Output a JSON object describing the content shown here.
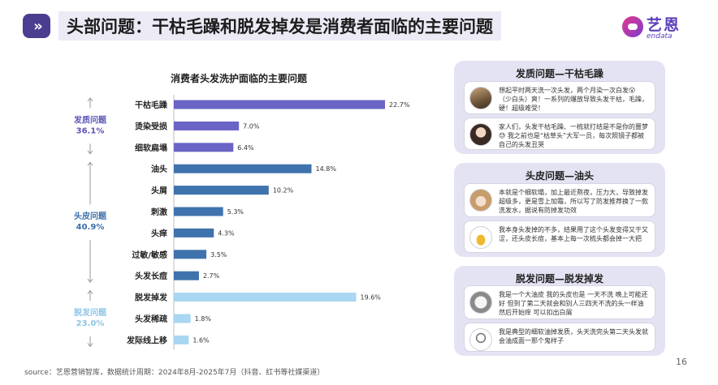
{
  "header": {
    "title": "头部问题：干枯毛躁和脱发掉发是消费者面临的主要问题",
    "logo_cn": "艺恩",
    "logo_en": "endata"
  },
  "chart_data": {
    "type": "bar",
    "orientation": "horizontal",
    "title": "消费者头发洗护面临的主要问题",
    "categories": [
      "干枯毛躁",
      "烫染受损",
      "细软扁塌",
      "油头",
      "头屑",
      "刺激",
      "头痒",
      "过敏/敏感",
      "头发长痘",
      "脱发掉发",
      "头发稀疏",
      "发际线上移"
    ],
    "values": [
      22.7,
      7.0,
      6.4,
      14.8,
      10.2,
      5.3,
      4.3,
      3.5,
      2.7,
      19.6,
      1.8,
      1.6
    ],
    "value_labels": [
      "22.7%",
      "7.0%",
      "6.4%",
      "14.8%",
      "10.2%",
      "5.3%",
      "4.3%",
      "3.5%",
      "2.7%",
      "19.6%",
      "1.8%",
      "1.6%"
    ],
    "groups": [
      {
        "name": "发质问题",
        "share": "36.1%",
        "color": "#5b55b8",
        "bar_color": "#6a64c6",
        "start": 0,
        "end": 2
      },
      {
        "name": "头皮问题",
        "share": "40.9%",
        "color": "#3b6fa8",
        "bar_color": "#3f73ad",
        "start": 3,
        "end": 8
      },
      {
        "name": "脱发问题",
        "share": "23.0%",
        "color": "#8ec5e6",
        "bar_color": "#a9d6f0",
        "start": 9,
        "end": 11
      }
    ],
    "xlim": [
      0,
      25
    ],
    "grid": false,
    "legend": "none"
  },
  "panels": [
    {
      "title": "发质问题—干枯毛躁",
      "posts": [
        {
          "text": "想起平时两天洗一次头发，两个月染一次白发😮（少白头）爽！一系列的爆放导致头发干枯，毛躁，硬！超级难受！",
          "avatar": "photo-avatar"
        },
        {
          "text": "家人们，头发干枯毛躁、一梳就打结是不是你的噩梦😓 我之前也是“枯草头”大军一员，每次照镜子都被自己的头发丑哭",
          "avatar": "photo-avatar"
        }
      ]
    },
    {
      "title": "头皮问题—油头",
      "posts": [
        {
          "text": "本就是个细软塌，加上最近熬夜，压力大，导致掉发超级多，更是雪上加霜，所以写了防发推荐换了一款洗发水，据说有防掉发功效",
          "avatar": "photo-avatar"
        },
        {
          "text": "我本身头发掉的不多，结果用了这个头发变得又干又涩，还头皮长痘，基本上每一次梳头都会掉一大把",
          "avatar": "pineapple-avatar"
        }
      ]
    },
    {
      "title": "脱发问题—脱发掉发",
      "posts": [
        {
          "text": "我是一个大油皮 我的头皮也是 一天不洗 晚上可能还好 但到了第二天就会和别人三四天不洗的头一样油 然后开始痒 可以扣出白屑",
          "avatar": "cat-avatar"
        },
        {
          "text": "我是典型的细软油掉发质，头天洗完头第二天头发就会油成面一那个鬼样子",
          "avatar": "mirror-avatar"
        }
      ]
    }
  ],
  "footer": {
    "source": "source：艺恩营销智库，数据统计周期：2024年8月-2025年7月（抖音、红书等社媒渠道）",
    "page": "16"
  }
}
